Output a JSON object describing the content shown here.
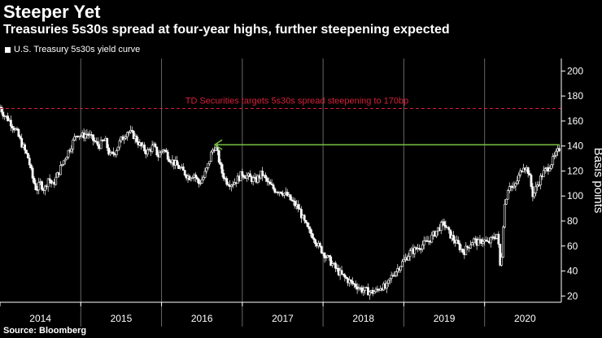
{
  "header": {
    "title": "Steeper Yet",
    "subtitle": "Treasuries 5s30s spread at four-year highs, further steepening expected"
  },
  "source": "Source: Bloomberg",
  "colors": {
    "background": "#000000",
    "series": "#ffffff",
    "target_line": "#d6203a",
    "arrow": "#7ac143",
    "axis": "#ffffff",
    "year_divider": "#666666"
  },
  "chart_data": {
    "type": "candlestick",
    "title": "Steeper Yet",
    "subtitle": "Treasuries 5s30s spread at four-year highs, further steepening expected",
    "ylabel": "Basis points",
    "ylim": [
      15,
      210
    ],
    "yticks": [
      "20",
      "40",
      "60",
      "80",
      "100",
      "120",
      "140",
      "160",
      "180",
      "200"
    ],
    "xlim": [
      2014.0,
      2020.95
    ],
    "xticks": [
      {
        "year": 2014,
        "label": "2014"
      },
      {
        "year": 2015,
        "label": "2015"
      },
      {
        "year": 2016,
        "label": "2016"
      },
      {
        "year": 2017,
        "label": "2017"
      },
      {
        "year": 2018,
        "label": "2018"
      },
      {
        "year": 2019,
        "label": "2019"
      },
      {
        "year": 2020,
        "label": "2020"
      }
    ],
    "legend": "U.S. Treasury 5s30s yield curve",
    "series": [
      {
        "name": "U.S. Treasury 5s30s yield curve",
        "points": [
          [
            2014.0,
            171
          ],
          [
            2014.05,
            165
          ],
          [
            2014.12,
            160
          ],
          [
            2014.2,
            152
          ],
          [
            2014.28,
            140
          ],
          [
            2014.35,
            130
          ],
          [
            2014.4,
            115
          ],
          [
            2014.45,
            105
          ],
          [
            2014.5,
            110
          ],
          [
            2014.55,
            105
          ],
          [
            2014.6,
            115
          ],
          [
            2014.65,
            108
          ],
          [
            2014.72,
            118
          ],
          [
            2014.8,
            130
          ],
          [
            2014.88,
            140
          ],
          [
            2014.95,
            150
          ],
          [
            2015.02,
            148
          ],
          [
            2015.08,
            150
          ],
          [
            2015.15,
            145
          ],
          [
            2015.22,
            140
          ],
          [
            2015.3,
            145
          ],
          [
            2015.36,
            132
          ],
          [
            2015.42,
            135
          ],
          [
            2015.5,
            145
          ],
          [
            2015.58,
            152
          ],
          [
            2015.66,
            148
          ],
          [
            2015.74,
            140
          ],
          [
            2015.82,
            135
          ],
          [
            2015.9,
            140
          ],
          [
            2015.96,
            132
          ],
          [
            2016.02,
            138
          ],
          [
            2016.1,
            130
          ],
          [
            2016.18,
            125
          ],
          [
            2016.26,
            120
          ],
          [
            2016.34,
            115
          ],
          [
            2016.4,
            118
          ],
          [
            2016.46,
            110
          ],
          [
            2016.52,
            115
          ],
          [
            2016.58,
            125
          ],
          [
            2016.62,
            135
          ],
          [
            2016.66,
            140
          ],
          [
            2016.7,
            132
          ],
          [
            2016.74,
            120
          ],
          [
            2016.8,
            112
          ],
          [
            2016.86,
            110
          ],
          [
            2016.92,
            112
          ],
          [
            2017.0,
            118
          ],
          [
            2017.08,
            115
          ],
          [
            2017.16,
            112
          ],
          [
            2017.24,
            118
          ],
          [
            2017.32,
            110
          ],
          [
            2017.4,
            105
          ],
          [
            2017.48,
            104
          ],
          [
            2017.56,
            100
          ],
          [
            2017.62,
            95
          ],
          [
            2017.7,
            90
          ],
          [
            2017.76,
            80
          ],
          [
            2017.82,
            72
          ],
          [
            2017.88,
            68
          ],
          [
            2017.94,
            60
          ],
          [
            2018.0,
            55
          ],
          [
            2018.06,
            50
          ],
          [
            2018.12,
            45
          ],
          [
            2018.18,
            40
          ],
          [
            2018.24,
            36
          ],
          [
            2018.3,
            33
          ],
          [
            2018.36,
            30
          ],
          [
            2018.42,
            28
          ],
          [
            2018.48,
            25
          ],
          [
            2018.54,
            24
          ],
          [
            2018.6,
            23
          ],
          [
            2018.66,
            24
          ],
          [
            2018.72,
            28
          ],
          [
            2018.78,
            26
          ],
          [
            2018.84,
            35
          ],
          [
            2018.9,
            40
          ],
          [
            2018.96,
            45
          ],
          [
            2019.02,
            50
          ],
          [
            2019.08,
            55
          ],
          [
            2019.14,
            57
          ],
          [
            2019.2,
            60
          ],
          [
            2019.26,
            62
          ],
          [
            2019.32,
            65
          ],
          [
            2019.38,
            70
          ],
          [
            2019.44,
            75
          ],
          [
            2019.5,
            78
          ],
          [
            2019.56,
            70
          ],
          [
            2019.62,
            65
          ],
          [
            2019.68,
            60
          ],
          [
            2019.74,
            55
          ],
          [
            2019.8,
            60
          ],
          [
            2019.86,
            65
          ],
          [
            2019.92,
            62
          ],
          [
            2019.98,
            65
          ],
          [
            2020.04,
            62
          ],
          [
            2020.1,
            66
          ],
          [
            2020.16,
            70
          ],
          [
            2020.2,
            38
          ],
          [
            2020.24,
            90
          ],
          [
            2020.3,
            110
          ],
          [
            2020.36,
            105
          ],
          [
            2020.42,
            115
          ],
          [
            2020.48,
            125
          ],
          [
            2020.54,
            120
          ],
          [
            2020.6,
            100
          ],
          [
            2020.66,
            110
          ],
          [
            2020.72,
            118
          ],
          [
            2020.78,
            122
          ],
          [
            2020.84,
            128
          ],
          [
            2020.9,
            135
          ],
          [
            2020.94,
            140
          ]
        ]
      }
    ],
    "annotations": {
      "target": {
        "y": 170,
        "label": "TD Securities targets 5s30s spread steepening to 170bp"
      },
      "arrow": {
        "y": 141,
        "x_from": 2020.93,
        "x_to": 2016.66
      }
    }
  }
}
